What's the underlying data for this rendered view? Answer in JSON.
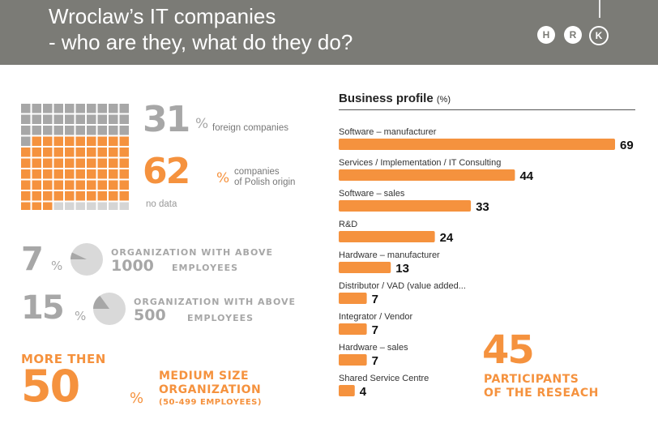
{
  "header": {
    "title_line1": "Wroclaw’s IT companies",
    "title_line2": "- who are they, what do they do?",
    "logos": [
      "H",
      "R",
      "K"
    ],
    "bg_color": "#7b7b76"
  },
  "colors": {
    "orange": "#f5923e",
    "gray": "#a7a7a7",
    "light_gray": "#d5d5d5"
  },
  "origin": {
    "foreign_value": "31",
    "foreign_pct": "%",
    "foreign_label": "foreign companies",
    "polish_value": "62",
    "polish_pct": "%",
    "polish_label_1": "companies",
    "polish_label_2": "of Polish origin",
    "nodata_label": "no data"
  },
  "size_stats": {
    "large": {
      "value": "7",
      "pct": "%",
      "line1": "ORGANIZATION WITH ABOVE",
      "num": "1000",
      "unit": "EMPLOYEES",
      "fraction": 0.07
    },
    "medium_large": {
      "value": "15",
      "pct": "%",
      "line1": "ORGANIZATION WITH ABOVE",
      "num": "500",
      "unit": "EMPLOYEES",
      "fraction": 0.15
    }
  },
  "medium": {
    "prefix": "MORE THEN",
    "value": "50",
    "pct": "%",
    "line1": "MEDIUM SIZE",
    "line2": "ORGANIZATION",
    "line3": "(50-499 EMPLOYEES)"
  },
  "participants": {
    "value": "45",
    "line1": "PARTICIPANTS",
    "line2": "OF THE RESEACH"
  },
  "chart_data": [
    {
      "type": "waffle",
      "categories": [
        "foreign companies",
        "companies of Polish origin",
        "no data"
      ],
      "values": [
        31,
        62,
        7
      ],
      "total_cells": 100
    },
    {
      "type": "bar",
      "orientation": "horizontal",
      "title": "Business profile",
      "title_unit": "(%)",
      "categories": [
        "Software – manufacturer",
        "Services / Implementation / IT Consulting",
        "Software – sales",
        "R&D",
        "Hardware – manufacturer",
        "Distributor / VAD (value added...",
        "Integrator / Vendor",
        "Hardware – sales",
        "Shared Service Centre"
      ],
      "values": [
        69,
        44,
        33,
        24,
        13,
        7,
        7,
        7,
        4
      ],
      "xlim": [
        0,
        69
      ],
      "grid": false
    }
  ]
}
